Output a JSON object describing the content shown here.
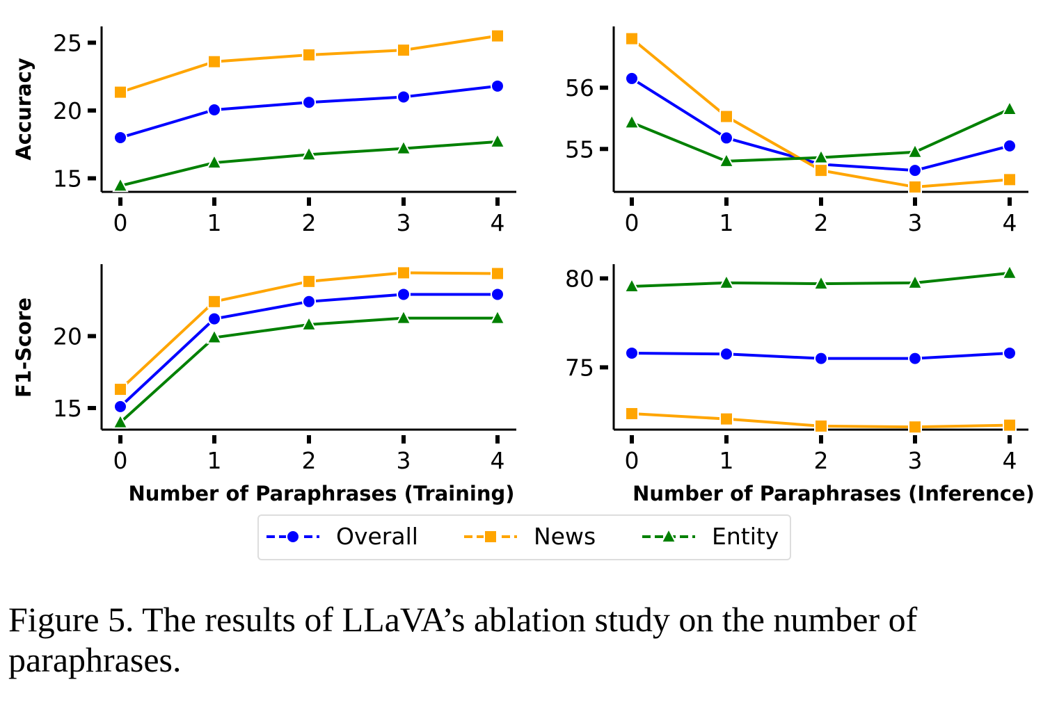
{
  "caption": "Figure 5. The results of LLaVA’s ablation study on the number of paraphrases.",
  "colors": {
    "Overall": "#0000ff",
    "News": "#ffa500",
    "Entity": "#008000"
  },
  "legend": [
    {
      "name": "Overall",
      "marker": "circle"
    },
    {
      "name": "News",
      "marker": "square"
    },
    {
      "name": "Entity",
      "marker": "triangle"
    }
  ],
  "chart_data": [
    {
      "id": "acc-train",
      "type": "line",
      "ylabel": "Accuracy",
      "xlabel": "",
      "x": [
        0,
        1,
        2,
        3,
        4
      ],
      "ylim": [
        14.0,
        26.2
      ],
      "yticks": [
        15,
        20,
        25
      ],
      "series": [
        {
          "name": "Overall",
          "values": [
            18.0,
            20.05,
            20.6,
            21.0,
            21.8
          ]
        },
        {
          "name": "News",
          "values": [
            21.35,
            23.6,
            24.1,
            24.45,
            25.5
          ]
        },
        {
          "name": "Entity",
          "values": [
            14.45,
            16.15,
            16.75,
            17.2,
            17.7
          ]
        }
      ]
    },
    {
      "id": "acc-infer",
      "type": "line",
      "ylabel": "",
      "xlabel": "",
      "x": [
        0,
        1,
        2,
        3,
        4
      ],
      "ylim": [
        54.3,
        57.0
      ],
      "yticks": [
        55,
        56
      ],
      "series": [
        {
          "name": "Overall",
          "values": [
            56.15,
            55.18,
            54.75,
            54.65,
            55.05
          ]
        },
        {
          "name": "News",
          "values": [
            56.8,
            55.53,
            54.65,
            54.38,
            54.5
          ]
        },
        {
          "name": "Entity",
          "values": [
            55.43,
            54.8,
            54.86,
            54.95,
            55.65
          ]
        }
      ]
    },
    {
      "id": "f1-train",
      "type": "line",
      "ylabel": "F1-Score",
      "xlabel": "Number of Paraphrases (Training)",
      "x": [
        0,
        1,
        2,
        3,
        4
      ],
      "ylim": [
        13.5,
        25.0
      ],
      "yticks": [
        15,
        20
      ],
      "series": [
        {
          "name": "Overall",
          "values": [
            15.1,
            21.2,
            22.4,
            22.9,
            22.9
          ]
        },
        {
          "name": "News",
          "values": [
            16.3,
            22.4,
            23.8,
            24.4,
            24.35
          ]
        },
        {
          "name": "Entity",
          "values": [
            14.0,
            19.9,
            20.8,
            21.25,
            21.25
          ]
        }
      ]
    },
    {
      "id": "f1-infer",
      "type": "line",
      "ylabel": "",
      "xlabel": "Number of Paraphrases (Inference)",
      "x": [
        0,
        1,
        2,
        3,
        4
      ],
      "ylim": [
        71.5,
        80.8
      ],
      "yticks": [
        75,
        80
      ],
      "series": [
        {
          "name": "Overall",
          "values": [
            75.8,
            75.75,
            75.5,
            75.5,
            75.8
          ]
        },
        {
          "name": "News",
          "values": [
            72.4,
            72.1,
            71.7,
            71.65,
            71.75
          ]
        },
        {
          "name": "Entity",
          "values": [
            79.55,
            79.75,
            79.7,
            79.75,
            80.3
          ]
        }
      ]
    }
  ]
}
